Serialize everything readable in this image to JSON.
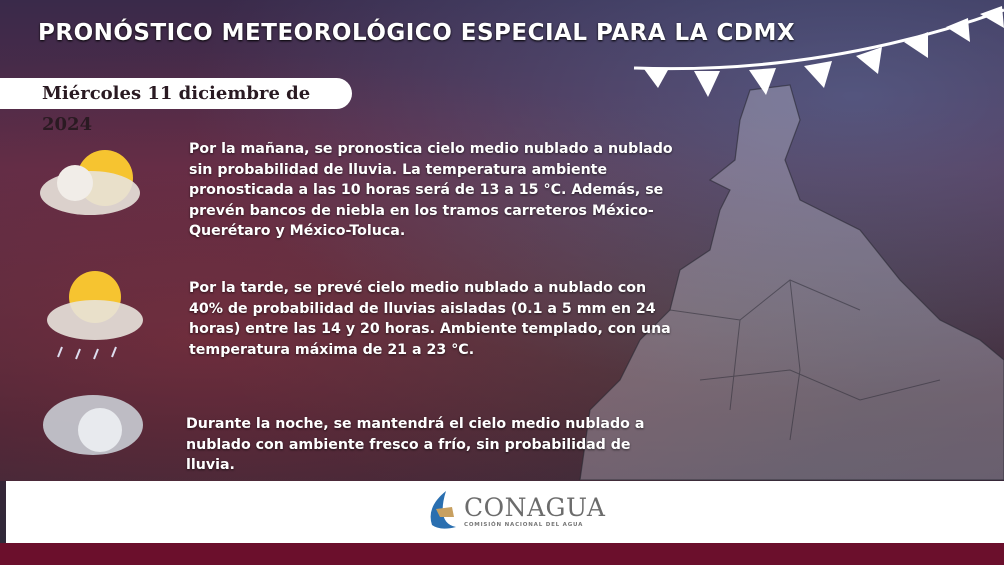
{
  "header": {
    "title": "PRONÓSTICO METEOROLÓGICO ESPECIAL PARA LA CDMX",
    "date": "Miércoles 11 diciembre de 2024"
  },
  "forecast": [
    {
      "period": "morning",
      "icon": "sun-behind-cloud-icon",
      "text": "Por la mañana, se pronostica cielo medio nublado a nublado sin probabilidad de lluvia. La temperatura ambiente pronosticada a las 10 horas será de 13 a 15 °C. Además, se prevén bancos de niebla en los tramos carreteros México-Querétaro y México-Toluca."
    },
    {
      "period": "afternoon",
      "icon": "sun-cloud-rain-icon",
      "text": "Por la tarde, se prevé cielo medio nublado a nublado con 40% de probabilidad de lluvias aisladas (0.1 a 5 mm en 24 horas) entre las 14 y 20 horas. Ambiente templado, con una temperatura máxima de 21 a 23 °C."
    },
    {
      "period": "night",
      "icon": "moon-cloud-icon",
      "text": "Durante la noche, se mantendrá el cielo medio nublado a nublado con ambiente fresco a frío, sin probabilidad de lluvia."
    }
  ],
  "footer": {
    "logo_name": "CONAGUA",
    "logo_subtitle": "COMISIÓN NACIONAL DEL AGUA"
  },
  "colors": {
    "footer_bar": "#6b0f2c",
    "logo_blue": "#2a6fb0",
    "logo_gold": "#c8a060"
  }
}
